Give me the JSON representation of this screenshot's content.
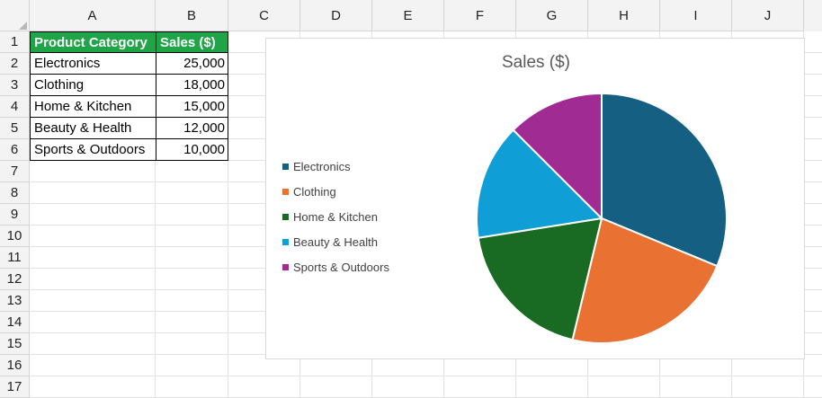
{
  "sheet": {
    "columns": [
      "A",
      "B",
      "C",
      "D",
      "E",
      "F",
      "G",
      "H",
      "I",
      "J"
    ],
    "rows": [
      "1",
      "2",
      "3",
      "4",
      "5",
      "6",
      "7",
      "8",
      "9",
      "10",
      "11",
      "12",
      "13",
      "14",
      "15",
      "16",
      "17"
    ],
    "header": [
      "Product Category",
      "Sales ($)"
    ],
    "data": [
      {
        "category": "Electronics",
        "sales": "25,000"
      },
      {
        "category": "Clothing",
        "sales": "18,000"
      },
      {
        "category": "Home & Kitchen",
        "sales": "15,000"
      },
      {
        "category": "Beauty & Health",
        "sales": "12,000"
      },
      {
        "category": "Sports & Outdoors",
        "sales": "10,000"
      }
    ],
    "header_color": "#1fa548"
  },
  "chart_data": {
    "type": "pie",
    "title": "Sales ($)",
    "categories": [
      "Electronics",
      "Clothing",
      "Home & Kitchen",
      "Beauty & Health",
      "Sports & Outdoors"
    ],
    "values": [
      25000,
      18000,
      15000,
      12000,
      10000
    ],
    "colors": [
      "#156082",
      "#e97132",
      "#196b24",
      "#0f9ed5",
      "#a02b93"
    ],
    "legend_position": "left"
  }
}
